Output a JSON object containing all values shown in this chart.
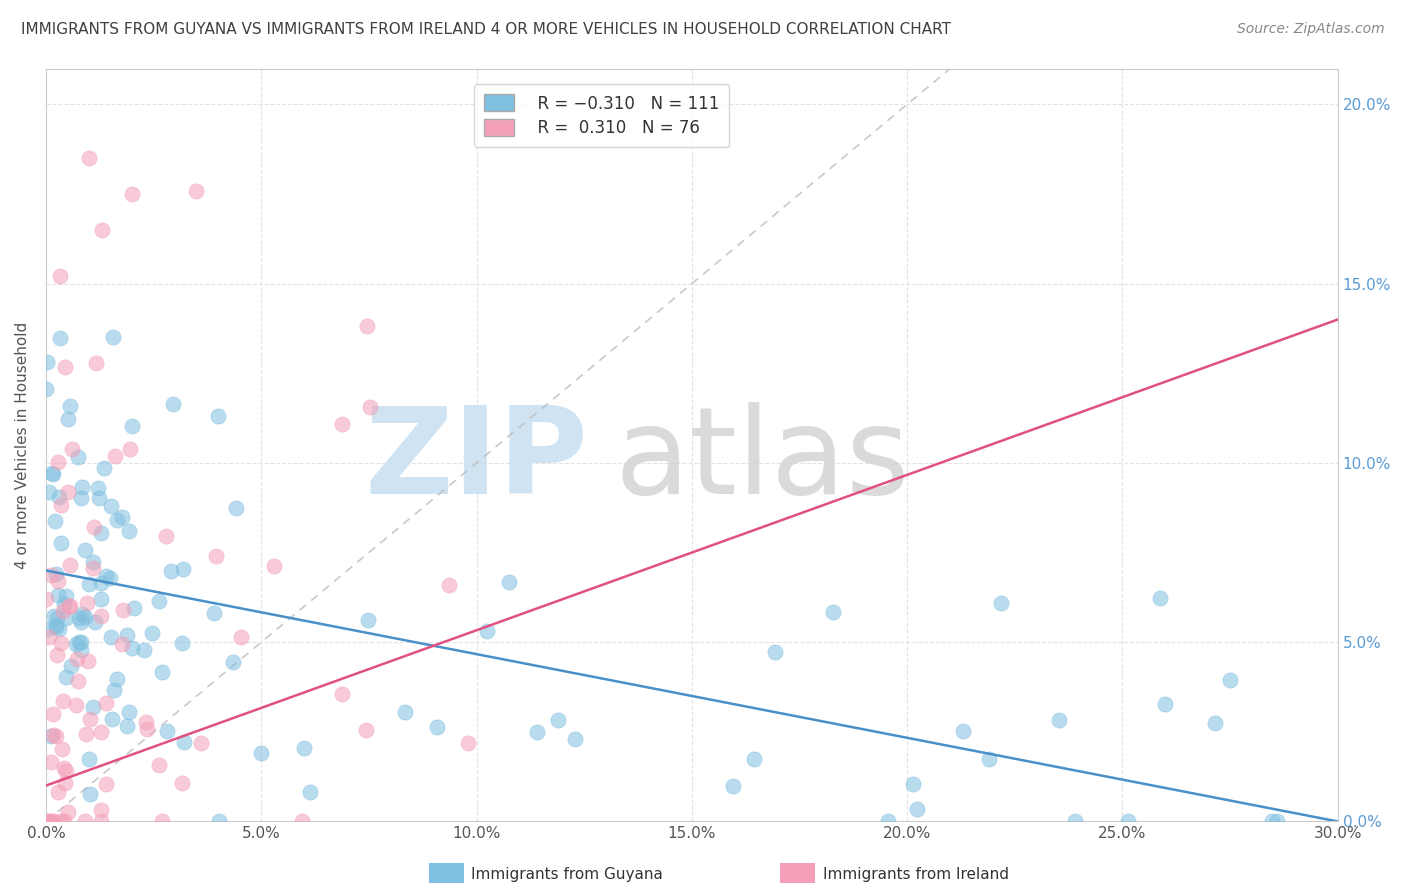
{
  "title": "IMMIGRANTS FROM GUYANA VS IMMIGRANTS FROM IRELAND 4 OR MORE VEHICLES IN HOUSEHOLD CORRELATION CHART",
  "source": "Source: ZipAtlas.com",
  "ylabel": "4 or more Vehicles in Household",
  "legend_labels": [
    "Immigrants from Guyana",
    "Immigrants from Ireland"
  ],
  "legend_R": [
    -0.31,
    0.31
  ],
  "legend_N": [
    111,
    76
  ],
  "guyana_color": "#7fbfdf",
  "ireland_color": "#f4a0b8",
  "guyana_trend_color": "#4a90c8",
  "ireland_trend_color": "#e05080",
  "ref_line_color": "#bbbbbb",
  "xlim": [
    0.0,
    0.3
  ],
  "ylim": [
    0.0,
    0.21
  ],
  "xticks": [
    0.0,
    0.05,
    0.1,
    0.15,
    0.2,
    0.25,
    0.3
  ],
  "yticks": [
    0.0,
    0.05,
    0.1,
    0.15,
    0.2
  ],
  "xtick_labels": [
    "0.0%",
    "5.0%",
    "10.0%",
    "15.0%",
    "20.0%",
    "25.0%",
    "30.0%"
  ],
  "ytick_labels_right": [
    "0.0%",
    "5.0%",
    "10.0%",
    "15.0%",
    "20.0%"
  ],
  "watermark_zip": "ZIP",
  "watermark_atlas": "atlas",
  "background_color": "#ffffff",
  "right_tick_color": "#5b9bd5",
  "grid_color": "#e0e0e0",
  "title_color": "#404040",
  "source_color": "#888888"
}
